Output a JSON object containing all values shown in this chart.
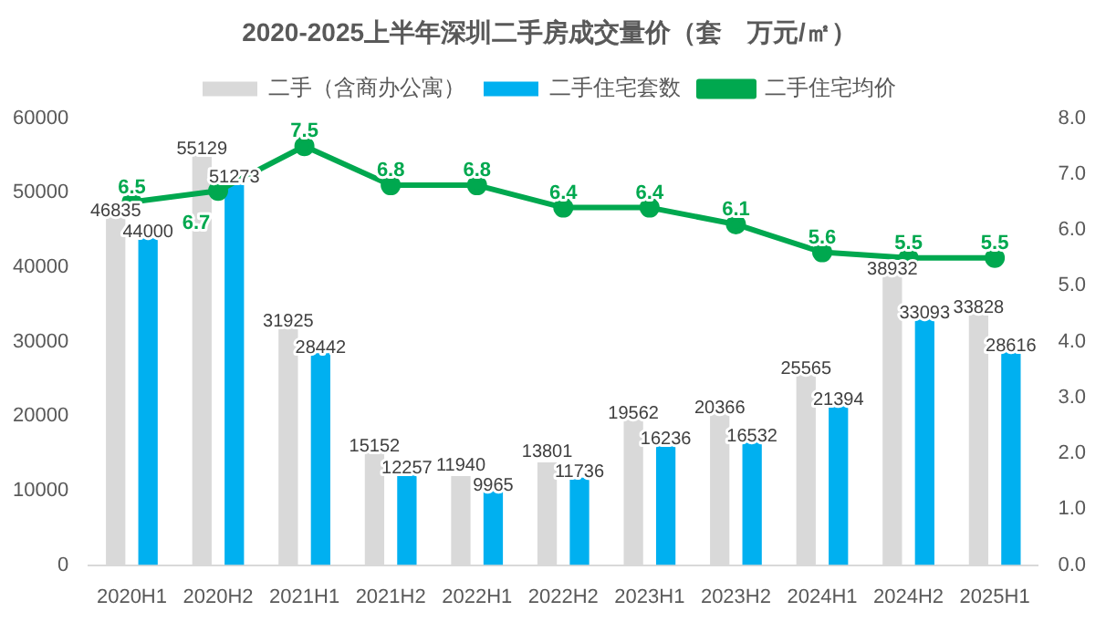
{
  "chart_data": {
    "type": "bar",
    "title": "2020-2025上半年深圳二手房成交量价（套　万元/㎡）",
    "categories": [
      "2020H1",
      "2020H2",
      "2021H1",
      "2021H2",
      "2022H1",
      "2022H2",
      "2023H1",
      "2023H2",
      "2024H1",
      "2024H2",
      "2025H1"
    ],
    "series": [
      {
        "name": "二手（含商办公寓）",
        "color": "#d9d9d9",
        "values": [
          46835,
          55129,
          31925,
          15152,
          11940,
          13801,
          19562,
          20366,
          25565,
          38932,
          33828
        ]
      },
      {
        "name": "二手住宅套数",
        "color": "#00b0f0",
        "values": [
          44000,
          51273,
          28442,
          12257,
          9965,
          11736,
          16236,
          16532,
          21394,
          33093,
          28616
        ]
      },
      {
        "name": "二手住宅均价",
        "type": "line",
        "axis": "y2",
        "color": "#00a84f",
        "marker": "circle",
        "values": [
          6.5,
          6.7,
          7.5,
          6.8,
          6.8,
          6.4,
          6.4,
          6.1,
          5.6,
          5.5,
          5.5
        ]
      }
    ],
    "ylim": [
      0,
      60000
    ],
    "yticks": [
      0,
      10000,
      20000,
      30000,
      40000,
      50000,
      60000
    ],
    "y2lim": [
      0,
      8
    ],
    "y2ticks": [
      {
        "value": 0,
        "label": "0.0"
      },
      {
        "value": 1,
        "label": "1.0"
      },
      {
        "value": 2,
        "label": "2.0"
      },
      {
        "value": 3,
        "label": "3.0"
      },
      {
        "value": 4,
        "label": "4.0"
      },
      {
        "value": 5,
        "label": "5.0"
      },
      {
        "value": 6,
        "label": "6.0"
      },
      {
        "value": 7,
        "label": "7.0"
      },
      {
        "value": 8,
        "label": "8.0"
      }
    ],
    "grid": false,
    "legend": "top",
    "data_labels": true
  }
}
